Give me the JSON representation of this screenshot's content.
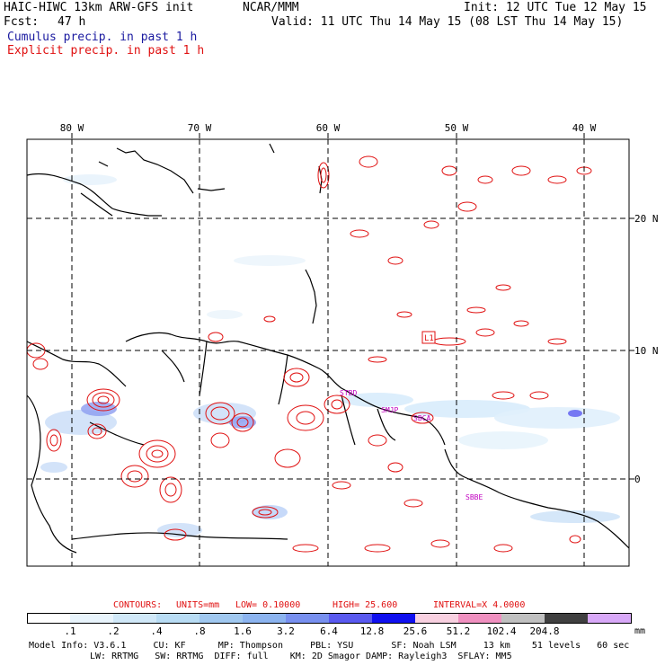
{
  "header": {
    "title": "HAIC-HIWC 13km ARW-GFS init",
    "org": "NCAR/MMM",
    "init": "Init: 12 UTC Tue 12 May 15",
    "fcst_label": "Fcst:",
    "fcst_value": "47 h",
    "valid": "Valid: 11 UTC Thu 14 May 15 (08 LST Thu 14 May 15)",
    "legend_cumulus": "Cumulus precip. in past 1 h",
    "legend_explicit": "Explicit precip. in past 1 h"
  },
  "colors": {
    "cumulus_text": "#1a1aa0",
    "explicit_text": "#e01010",
    "contour": "#e01010",
    "land": "#000000",
    "grid": "#000000"
  },
  "map": {
    "lon_labels": [
      "80 W",
      "70 W",
      "60 W",
      "50 W",
      "40 W"
    ],
    "lat_labels": [
      "20 N",
      "10 N",
      "0"
    ],
    "stations": [
      "STBD",
      "SMJP",
      "SBCA",
      "SBBE"
    ],
    "marker_label": "L1"
  },
  "contours": {
    "label": "CONTOURS:",
    "units": "UNITS=mm",
    "low": "LOW= 0.10000",
    "high": "HIGH= 25.600",
    "interval": "INTERVAL=X 4.0000"
  },
  "colorbar": {
    "colors": [
      "#ffffff",
      "#e8f4fc",
      "#d0e8f8",
      "#b8dcf4",
      "#a0c8f0",
      "#8cb4f0",
      "#7890f0",
      "#5a5af0",
      "#1010f0",
      "#f8d0e0",
      "#f090c0",
      "#c0c0c0",
      "#404040",
      "#d8a8f8"
    ],
    "labels": [
      ".1",
      ".2",
      ".4",
      ".8",
      "1.6",
      "3.2",
      "6.4",
      "12.8",
      "25.6",
      "51.2",
      "102.4",
      "204.8"
    ],
    "unit": "mm"
  },
  "footer": {
    "line1": "Model Info: V3.6.1     CU: KF      MP: Thompson     PBL: YSU       SF: Noah LSM     13 km    51 levels   60 sec",
    "line2": "LW: RRTMG   SW: RRTMG  DIFF: full    KM: 2D Smagor DAMP: Rayleigh3  SFLAY: MM5"
  }
}
